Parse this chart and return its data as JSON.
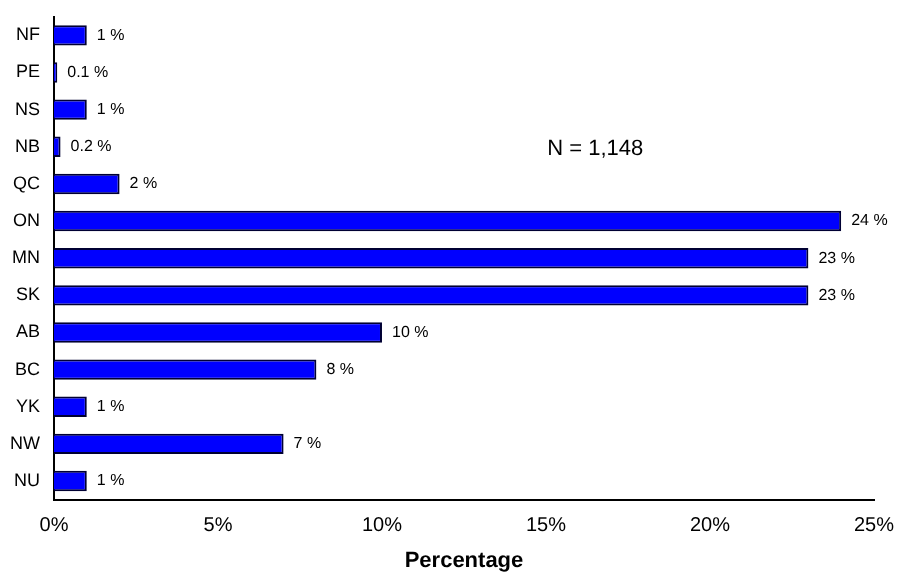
{
  "chart_data": {
    "type": "bar",
    "orientation": "horizontal",
    "xlabel": "Percentage",
    "categories": [
      "NF",
      "PE",
      "NS",
      "NB",
      "QC",
      "ON",
      "MN",
      "SK",
      "AB",
      "BC",
      "YK",
      "NW",
      "NU"
    ],
    "values": [
      1,
      0.1,
      1,
      0.2,
      2,
      24,
      23,
      23,
      10,
      8,
      1,
      7,
      1
    ],
    "value_labels": [
      "1 %",
      "0.1 %",
      "1 %",
      "0.2 %",
      "2 %",
      "24 %",
      "23 %",
      "23 %",
      "10 %",
      "8 %",
      "1 %",
      "7 %",
      "1 %"
    ],
    "color": "#0000ff",
    "xlim": [
      0,
      25
    ],
    "xticks": [
      {
        "value": 0,
        "label": "0%"
      },
      {
        "value": 5,
        "label": "5%"
      },
      {
        "value": 10,
        "label": "10%"
      },
      {
        "value": 15,
        "label": "15%"
      },
      {
        "value": 20,
        "label": "20%"
      },
      {
        "value": 25,
        "label": "25%"
      }
    ],
    "annotations": [
      "N = 1,148"
    ],
    "grid": false,
    "legend": false
  }
}
